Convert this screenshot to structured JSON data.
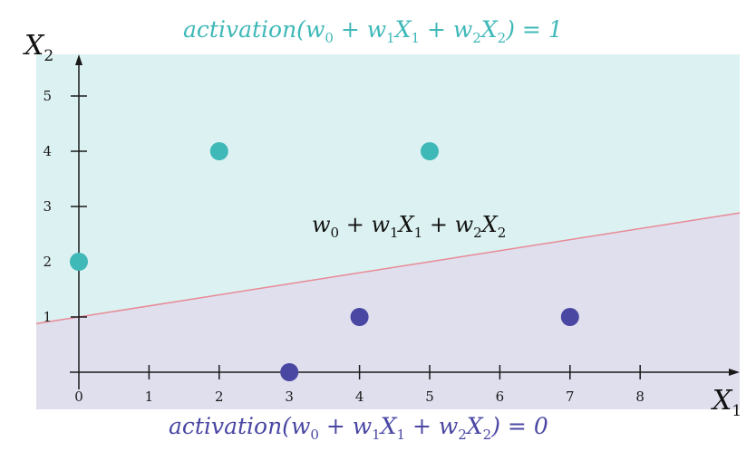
{
  "labels": {
    "top_region": {
      "fn": "activation",
      "open": "(",
      "w0": "w",
      "w0_sub": "0",
      "plus1": " + ",
      "w1": "w",
      "w1_sub": "1",
      "x1": "X",
      "x1_sub": "1",
      "plus2": " + ",
      "w2": "w",
      "w2_sub": "2",
      "x2": "X",
      "x2_sub": "2",
      "close": ") = ",
      "value": "1"
    },
    "bottom_region": {
      "fn": "activation",
      "open": "(",
      "w0": "w",
      "w0_sub": "0",
      "plus1": " + ",
      "w1": "w",
      "w1_sub": "1",
      "x1": "X",
      "x1_sub": "1",
      "plus2": " + ",
      "w2": "w",
      "w2_sub": "2",
      "x2": "X",
      "x2_sub": "2",
      "close": ") = ",
      "value": "0"
    },
    "boundary": {
      "w0": "w",
      "w0_sub": "0",
      "plus1": " + ",
      "w1": "w",
      "w1_sub": "1",
      "x1": "X",
      "x1_sub": "1",
      "plus2": " + ",
      "w2": "w",
      "w2_sub": "2",
      "x2": "X",
      "x2_sub": "2"
    },
    "x_axis": {
      "var": "X",
      "sub": "1"
    },
    "y_axis": {
      "var": "X",
      "sub": "2"
    }
  },
  "x_ticks": [
    "0",
    "1",
    "2",
    "3",
    "4",
    "5",
    "6",
    "7",
    "8"
  ],
  "y_ticks": [
    "1",
    "2",
    "3",
    "4",
    "5"
  ],
  "class_1_points": [
    {
      "x": 0,
      "y": 2
    },
    {
      "x": 2,
      "y": 4
    },
    {
      "x": 5,
      "y": 4
    }
  ],
  "class_0_points": [
    {
      "x": 3,
      "y": 0
    },
    {
      "x": 4,
      "y": 1
    },
    {
      "x": 7,
      "y": 1
    }
  ],
  "boundary_line": {
    "intercept": 1,
    "slope": 0.2
  },
  "colors": {
    "class_1": "#3fb8b8",
    "class_0": "#4a47a3",
    "region_1": "#dcf1f1",
    "region_0": "#e0dfee",
    "boundary": "#e88a96",
    "axis": "#1a1a1a"
  }
}
